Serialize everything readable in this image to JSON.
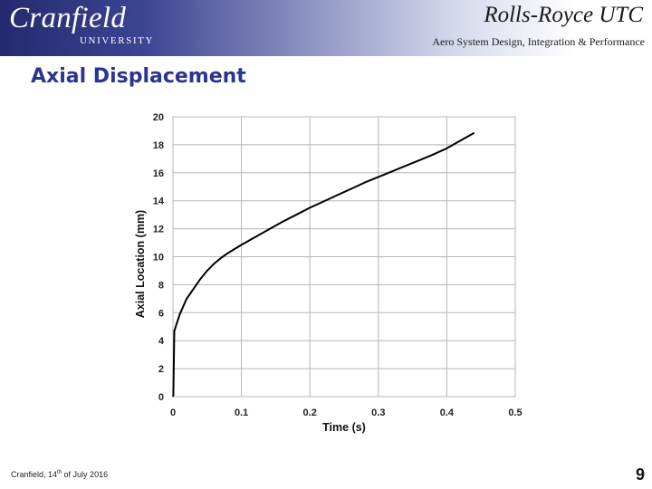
{
  "header": {
    "logo_main": "Cranfield",
    "logo_sub": "UNIVERSITY",
    "utc_title": "Rolls-Royce UTC",
    "utc_subtitle": "Aero System Design, Integration & Performance"
  },
  "slide_title": "Axial Displacement",
  "footer": {
    "prefix": "Cranfield, 14",
    "suffix_sup": "th",
    "rest": " of July 2016",
    "page_number": "9"
  },
  "chart_data": {
    "type": "line",
    "title": "",
    "xlabel": "Time (s)",
    "ylabel": "Axial Location (mm)",
    "xlim": [
      0,
      0.5
    ],
    "ylim": [
      0,
      20
    ],
    "xticks": [
      0,
      0.1,
      0.2,
      0.3,
      0.4,
      0.5
    ],
    "xtick_labels": [
      "0",
      "0.1",
      "0.2",
      "0.3",
      "0.4",
      "0.5"
    ],
    "yticks": [
      0,
      2,
      4,
      6,
      8,
      10,
      12,
      14,
      16,
      18,
      20
    ],
    "ytick_labels": [
      "0",
      "2",
      "4",
      "6",
      "8",
      "10",
      "12",
      "14",
      "16",
      "18",
      "20"
    ],
    "grid": true,
    "legend": "none",
    "line_color": "#000000",
    "series": [
      {
        "x": [
          0.0,
          0.0005,
          0.002,
          0.01,
          0.02,
          0.03,
          0.04,
          0.05,
          0.06,
          0.07,
          0.08,
          0.09,
          0.1,
          0.12,
          0.14,
          0.16,
          0.18,
          0.2,
          0.22,
          0.24,
          0.26,
          0.28,
          0.3,
          0.32,
          0.34,
          0.36,
          0.38,
          0.4,
          0.42,
          0.44
        ],
        "y": [
          0.0,
          0.1,
          4.7,
          5.9,
          7.0,
          7.7,
          8.4,
          9.0,
          9.5,
          9.9,
          10.25,
          10.55,
          10.85,
          11.4,
          11.95,
          12.5,
          13.0,
          13.5,
          13.95,
          14.4,
          14.85,
          15.3,
          15.7,
          16.1,
          16.5,
          16.9,
          17.3,
          17.75,
          18.3,
          18.85
        ]
      }
    ]
  }
}
